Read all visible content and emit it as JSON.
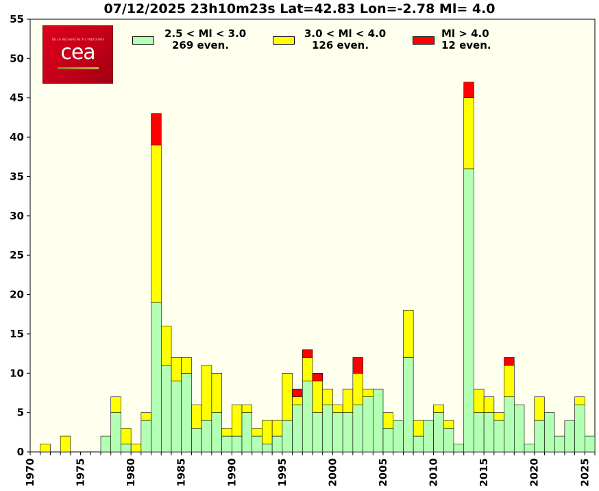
{
  "title": "07/12/2025 23h10m23s Lat=42.83 Lon=-2.78 Ml= 4.0",
  "logo": {
    "text": "cea",
    "tagline": "DE LA RECHERCHE À L'INDUSTRIE"
  },
  "colors": {
    "plot_bg": "#ffffee",
    "low": "#b3ffb3",
    "mid": "#ffff00",
    "high": "#ff0000"
  },
  "legend": [
    {
      "label": "2.5 < Ml <  3.0",
      "count": "269 even.",
      "color": "#b3ffb3"
    },
    {
      "label": "3.0 < Ml <  4.0",
      "count": "126 even.",
      "color": "#ffff00"
    },
    {
      "label": "Ml >  4.0",
      "count": "12 even.",
      "color": "#ff0000"
    }
  ],
  "chart_data": {
    "type": "bar",
    "stacked": true,
    "title": "07/12/2025 23h10m23s Lat=42.83 Lon=-2.78 Ml= 4.0",
    "xlabel": "",
    "ylabel": "",
    "xlim": [
      1970,
      2026
    ],
    "ylim": [
      0,
      55
    ],
    "xticks": [
      1970,
      1975,
      1980,
      1985,
      1990,
      1995,
      2000,
      2005,
      2010,
      2015,
      2020,
      2025
    ],
    "yticks": [
      0,
      5,
      10,
      15,
      20,
      25,
      30,
      35,
      40,
      45,
      50,
      55
    ],
    "categories": [
      1970,
      1971,
      1972,
      1973,
      1974,
      1975,
      1976,
      1977,
      1978,
      1979,
      1980,
      1981,
      1982,
      1983,
      1984,
      1985,
      1986,
      1987,
      1988,
      1989,
      1990,
      1991,
      1992,
      1993,
      1994,
      1995,
      1996,
      1997,
      1998,
      1999,
      2000,
      2001,
      2002,
      2003,
      2004,
      2005,
      2006,
      2007,
      2008,
      2009,
      2010,
      2011,
      2012,
      2013,
      2014,
      2015,
      2016,
      2017,
      2018,
      2019,
      2020,
      2021,
      2022,
      2023,
      2024,
      2025
    ],
    "series": [
      {
        "name": "2.5 < Ml <  3.0",
        "color": "#b3ffb3",
        "values": [
          0,
          0,
          0,
          0,
          0,
          0,
          0,
          2,
          5,
          1,
          0,
          4,
          19,
          11,
          9,
          10,
          3,
          4,
          5,
          2,
          2,
          5,
          2,
          1,
          2,
          4,
          6,
          9,
          5,
          6,
          5,
          5,
          6,
          7,
          8,
          3,
          4,
          12,
          2,
          4,
          5,
          3,
          1,
          36,
          5,
          5,
          4,
          7,
          6,
          1,
          4,
          5,
          2,
          4,
          6,
          2
        ]
      },
      {
        "name": "3.0 < Ml <  4.0",
        "color": "#ffff00",
        "values": [
          0,
          1,
          0,
          2,
          0,
          0,
          0,
          0,
          2,
          2,
          1,
          1,
          20,
          5,
          3,
          2,
          3,
          7,
          5,
          1,
          4,
          1,
          1,
          3,
          2,
          6,
          1,
          3,
          4,
          2,
          1,
          3,
          4,
          1,
          0,
          2,
          0,
          6,
          2,
          0,
          1,
          1,
          0,
          9,
          3,
          2,
          1,
          4,
          0,
          0,
          3,
          0,
          0,
          0,
          1,
          0
        ]
      },
      {
        "name": "Ml >  4.0",
        "color": "#ff0000",
        "values": [
          0,
          0,
          0,
          0,
          0,
          0,
          0,
          0,
          0,
          0,
          0,
          0,
          4,
          0,
          0,
          0,
          0,
          0,
          0,
          0,
          0,
          0,
          0,
          0,
          0,
          0,
          1,
          1,
          1,
          0,
          0,
          0,
          2,
          0,
          0,
          0,
          0,
          0,
          0,
          0,
          0,
          0,
          0,
          2,
          0,
          0,
          0,
          1,
          0,
          0,
          0,
          0,
          0,
          0,
          0,
          0
        ]
      }
    ]
  }
}
